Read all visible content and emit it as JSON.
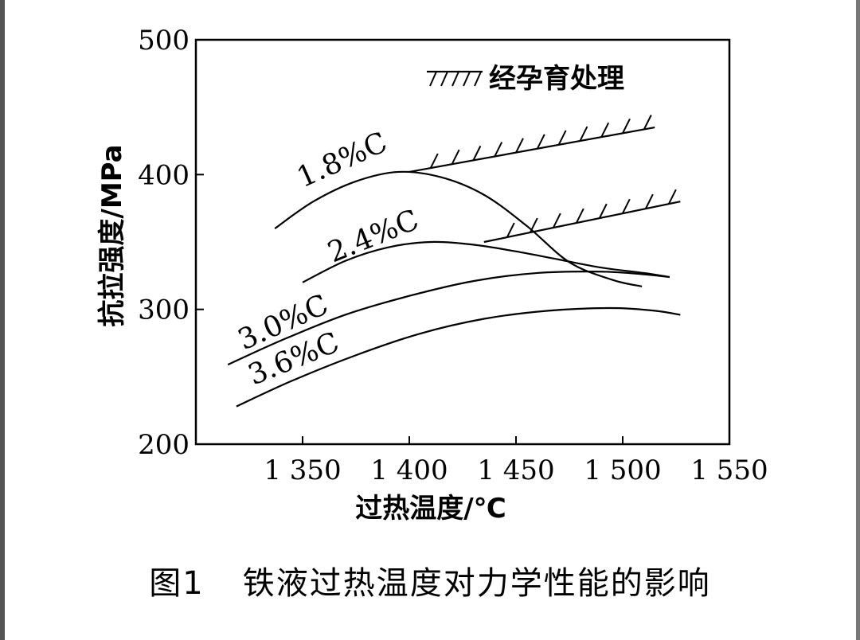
{
  "chart_data": {
    "type": "line",
    "xlabel": "过热温度/℃",
    "ylabel": "抗拉强度/MPa",
    "xlim": [
      1300,
      1550
    ],
    "ylim": [
      200,
      500
    ],
    "x_ticks": [
      1350,
      1400,
      1450,
      1500,
      1550
    ],
    "x_tick_labels": [
      "1 350",
      "1 400",
      "1 450",
      "1 500",
      "1 550"
    ],
    "y_ticks": [
      200,
      300,
      400,
      500
    ],
    "y_tick_labels": [
      "200",
      "300",
      "400",
      "500"
    ],
    "grid": false,
    "series": [
      {
        "name": "1.8%C",
        "points": [
          [
            1337,
            360
          ],
          [
            1355,
            380
          ],
          [
            1375,
            395
          ],
          [
            1395,
            402
          ],
          [
            1415,
            398
          ],
          [
            1435,
            385
          ],
          [
            1455,
            362
          ],
          [
            1475,
            335
          ],
          [
            1495,
            322
          ],
          [
            1509,
            317
          ]
        ]
      },
      {
        "name": "2.4%C",
        "points": [
          [
            1350,
            320
          ],
          [
            1370,
            336
          ],
          [
            1390,
            346
          ],
          [
            1410,
            350
          ],
          [
            1430,
            348
          ],
          [
            1450,
            343
          ],
          [
            1470,
            337
          ],
          [
            1490,
            331
          ],
          [
            1510,
            327
          ],
          [
            1522,
            324
          ]
        ]
      },
      {
        "name": "3.0%C",
        "points": [
          [
            1315,
            259
          ],
          [
            1340,
            277
          ],
          [
            1370,
            296
          ],
          [
            1400,
            310
          ],
          [
            1430,
            321
          ],
          [
            1460,
            327
          ],
          [
            1490,
            328
          ],
          [
            1510,
            326
          ],
          [
            1522,
            324
          ]
        ]
      },
      {
        "name": "3.6%C",
        "points": [
          [
            1319,
            228
          ],
          [
            1345,
            247
          ],
          [
            1375,
            266
          ],
          [
            1405,
            282
          ],
          [
            1435,
            293
          ],
          [
            1465,
            299
          ],
          [
            1495,
            301
          ],
          [
            1515,
            299
          ],
          [
            1527,
            296
          ]
        ]
      }
    ],
    "inoculation_lines": [
      {
        "from": [
          1400,
          402
        ],
        "to": [
          1515,
          435
        ]
      },
      {
        "from": [
          1435,
          350
        ],
        "to": [
          1527,
          380
        ]
      }
    ],
    "legend": {
      "label": "经孕育处理",
      "position": "top-right"
    }
  },
  "caption": {
    "number": "图1",
    "text": "铁液过热温度对力学性能的影响"
  }
}
